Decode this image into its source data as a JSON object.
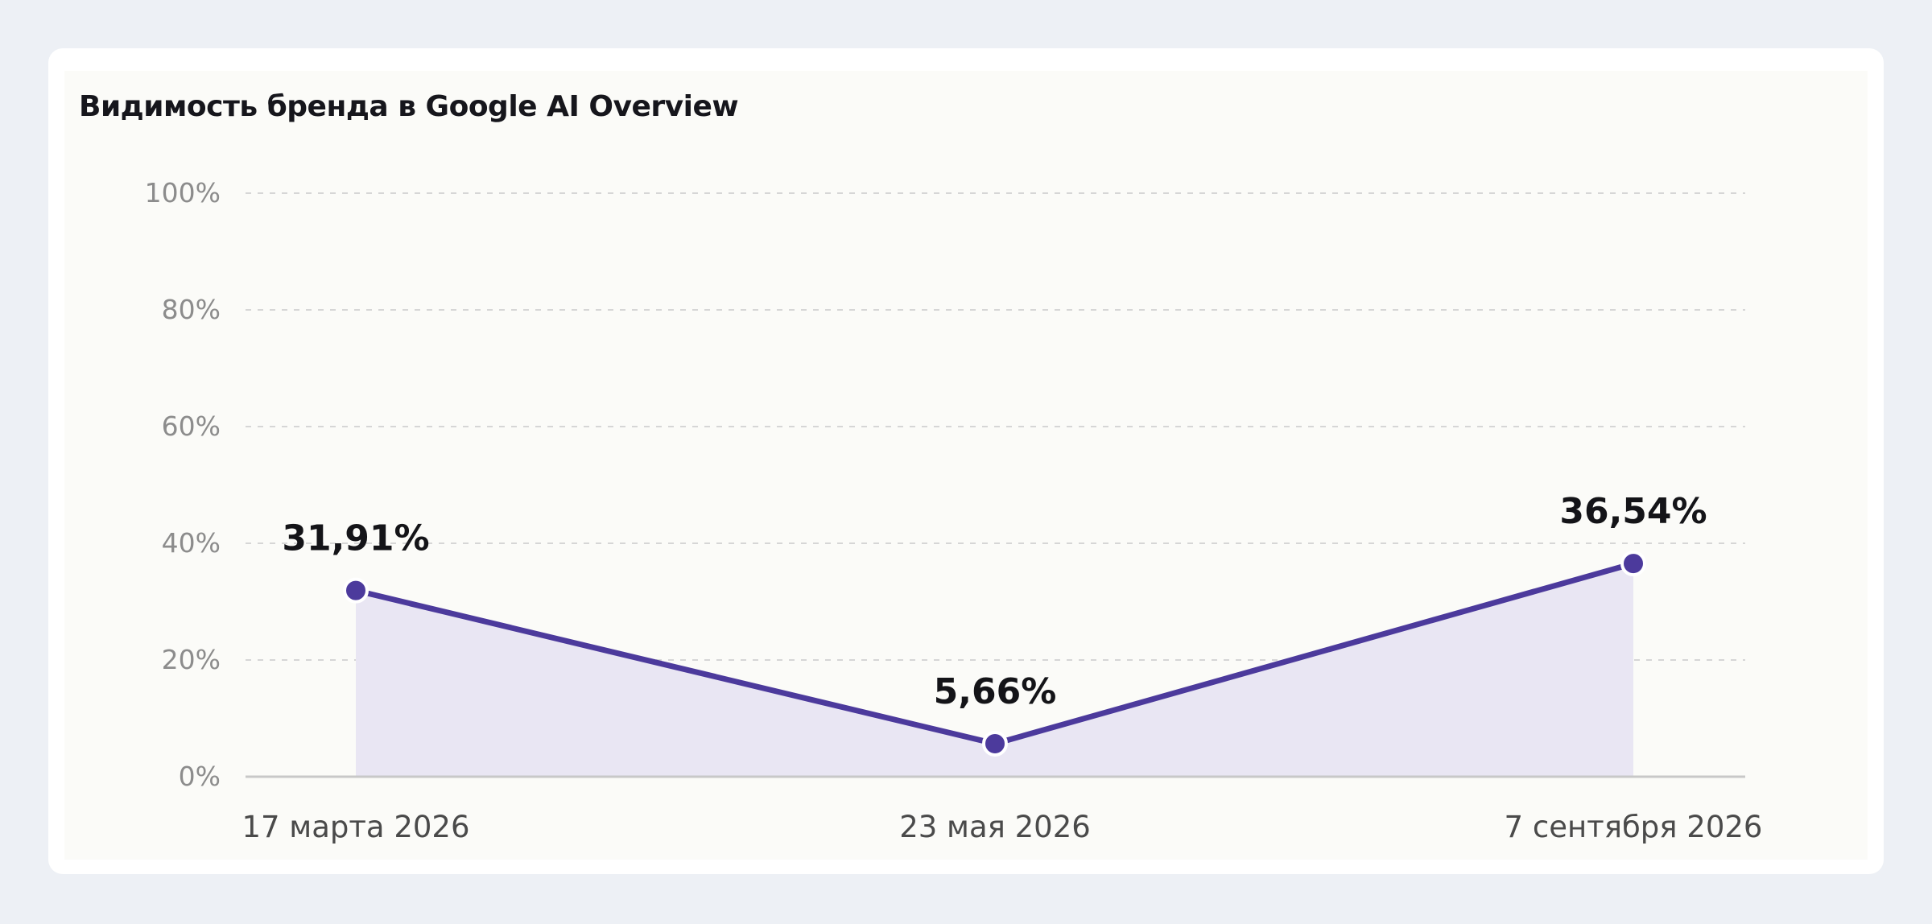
{
  "chart_data": {
    "type": "area",
    "title": "Видимость бренда в Google AI Overview",
    "xlabel": "",
    "ylabel": "",
    "categories": [
      "17 марта 2026",
      "23 мая 2026",
      "7 сентября 2026"
    ],
    "x": [
      "2026-03-17",
      "2026-05-23",
      "2026-09-07"
    ],
    "values": [
      31.91,
      5.66,
      36.54
    ],
    "data_labels": [
      "31,91%",
      "5,66%",
      "36,54%"
    ],
    "ylim": [
      0,
      100
    ],
    "y_ticks": [
      0,
      20,
      40,
      60,
      80,
      100
    ],
    "y_tick_labels": [
      "0%",
      "20%",
      "40%",
      "60%",
      "80%",
      "100%"
    ],
    "grid": true,
    "legend": "none",
    "colors": {
      "line": "#4c3a9c",
      "fill": "#e9e6f3",
      "grid": "#d6d6d6",
      "axis": "#c8c8c8",
      "tick_text": "#8c8c8c",
      "category_text": "#4a4a4a",
      "label_text": "#141418",
      "background": "#edf0f5",
      "card": "#ffffff",
      "plot_area": "#fbfbf8"
    }
  }
}
